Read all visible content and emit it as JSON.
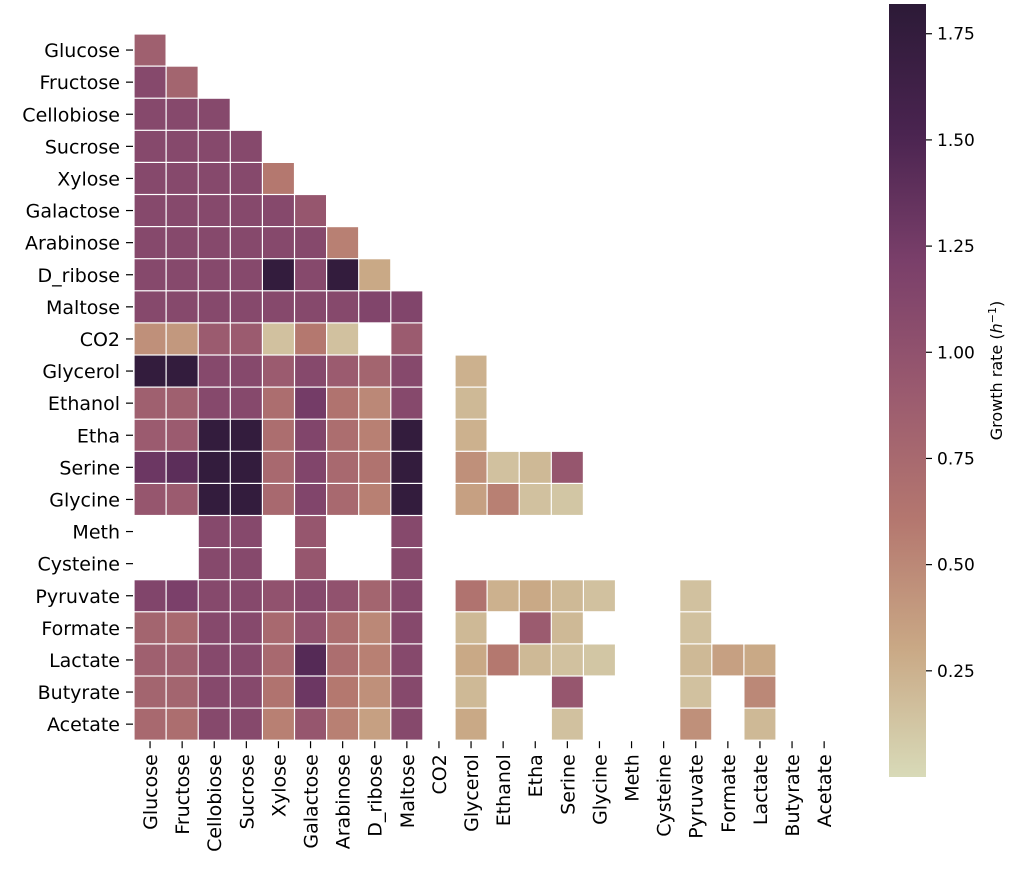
{
  "chart_data": {
    "type": "heatmap",
    "title": "",
    "xlabel": "",
    "ylabel": "",
    "rows": [
      "Glucose",
      "Fructose",
      "Cellobiose",
      "Sucrose",
      "Xylose",
      "Galactose",
      "Arabinose",
      "D_ribose",
      "Maltose",
      "CO2",
      "Glycerol",
      "Ethanol",
      "Etha",
      "Serine",
      "Glycine",
      "Meth",
      "Cysteine",
      "Pyruvate",
      "Formate",
      "Lactate",
      "Butyrate",
      "Acetate"
    ],
    "columns": [
      "Glucose",
      "Fructose",
      "Cellobiose",
      "Sucrose",
      "Xylose",
      "Galactose",
      "Arabinose",
      "D_ribose",
      "Maltose",
      "CO2",
      "Glycerol",
      "Ethanol",
      "Etha",
      "Serine",
      "Glycine",
      "Meth",
      "Cysteine",
      "Pyruvate",
      "Formate",
      "Lactate",
      "Butyrate",
      "Acetate"
    ],
    "values": [
      [
        0.85,
        null,
        null,
        null,
        null,
        null,
        null,
        null,
        null,
        null,
        null,
        null,
        null,
        null,
        null,
        null,
        null,
        null,
        null,
        null,
        null,
        null
      ],
      [
        1.1,
        0.8,
        null,
        null,
        null,
        null,
        null,
        null,
        null,
        null,
        null,
        null,
        null,
        null,
        null,
        null,
        null,
        null,
        null,
        null,
        null,
        null
      ],
      [
        1.1,
        1.1,
        1.1,
        null,
        null,
        null,
        null,
        null,
        null,
        null,
        null,
        null,
        null,
        null,
        null,
        null,
        null,
        null,
        null,
        null,
        null,
        null
      ],
      [
        1.1,
        1.1,
        1.1,
        1.1,
        null,
        null,
        null,
        null,
        null,
        null,
        null,
        null,
        null,
        null,
        null,
        null,
        null,
        null,
        null,
        null,
        null,
        null
      ],
      [
        1.1,
        1.1,
        1.1,
        1.1,
        0.6,
        null,
        null,
        null,
        null,
        null,
        null,
        null,
        null,
        null,
        null,
        null,
        null,
        null,
        null,
        null,
        null,
        null
      ],
      [
        1.1,
        1.1,
        1.1,
        1.1,
        1.1,
        0.95,
        null,
        null,
        null,
        null,
        null,
        null,
        null,
        null,
        null,
        null,
        null,
        null,
        null,
        null,
        null,
        null
      ],
      [
        1.1,
        1.1,
        1.1,
        1.1,
        1.1,
        1.1,
        0.55,
        null,
        null,
        null,
        null,
        null,
        null,
        null,
        null,
        null,
        null,
        null,
        null,
        null,
        null,
        null
      ],
      [
        1.1,
        1.1,
        1.1,
        1.1,
        1.75,
        1.1,
        1.75,
        0.3,
        null,
        null,
        null,
        null,
        null,
        null,
        null,
        null,
        null,
        null,
        null,
        null,
        null,
        null
      ],
      [
        1.1,
        1.1,
        1.1,
        1.1,
        1.1,
        1.1,
        1.1,
        1.15,
        1.15,
        null,
        null,
        null,
        null,
        null,
        null,
        null,
        null,
        null,
        null,
        null,
        null,
        null
      ],
      [
        0.45,
        0.4,
        0.9,
        0.9,
        0.15,
        0.6,
        0.15,
        null,
        0.9,
        null,
        null,
        null,
        null,
        null,
        null,
        null,
        null,
        null,
        null,
        null,
        null,
        null
      ],
      [
        1.75,
        1.75,
        1.1,
        1.1,
        0.9,
        1.1,
        0.9,
        0.8,
        1.1,
        null,
        0.25,
        null,
        null,
        null,
        null,
        null,
        null,
        null,
        null,
        null,
        null,
        null
      ],
      [
        0.85,
        0.85,
        1.1,
        1.1,
        0.7,
        1.25,
        0.65,
        0.5,
        1.1,
        null,
        0.2,
        null,
        null,
        null,
        null,
        null,
        null,
        null,
        null,
        null,
        null,
        null
      ],
      [
        0.9,
        0.9,
        1.75,
        1.75,
        0.7,
        1.15,
        0.7,
        0.55,
        1.75,
        null,
        0.25,
        null,
        null,
        null,
        null,
        null,
        null,
        null,
        null,
        null,
        null,
        null
      ],
      [
        1.3,
        1.4,
        1.75,
        1.75,
        0.75,
        1.15,
        0.75,
        0.65,
        1.75,
        null,
        0.45,
        0.15,
        0.2,
        0.95,
        null,
        null,
        null,
        null,
        null,
        null,
        null,
        null
      ],
      [
        0.95,
        0.9,
        1.75,
        1.75,
        0.75,
        1.15,
        0.75,
        0.55,
        1.75,
        null,
        0.35,
        0.55,
        0.15,
        0.12,
        null,
        null,
        null,
        null,
        null,
        null,
        null,
        null
      ],
      [
        null,
        null,
        1.1,
        1.1,
        null,
        0.95,
        null,
        null,
        1.1,
        null,
        null,
        null,
        null,
        null,
        null,
        null,
        null,
        null,
        null,
        null,
        null,
        null
      ],
      [
        null,
        null,
        1.1,
        1.1,
        null,
        0.95,
        null,
        null,
        1.1,
        null,
        null,
        null,
        null,
        null,
        null,
        null,
        null,
        null,
        null,
        null,
        null,
        null
      ],
      [
        1.15,
        1.2,
        1.1,
        1.1,
        1.0,
        1.1,
        1.0,
        0.8,
        1.1,
        null,
        0.65,
        0.25,
        0.3,
        0.2,
        0.15,
        null,
        null,
        0.15,
        null,
        null,
        null,
        null
      ],
      [
        0.8,
        0.75,
        1.1,
        1.1,
        0.75,
        1.0,
        0.7,
        0.5,
        1.1,
        null,
        0.2,
        null,
        0.9,
        0.2,
        null,
        null,
        null,
        0.15,
        null,
        null,
        null,
        null
      ],
      [
        0.85,
        0.85,
        1.1,
        1.1,
        0.75,
        1.45,
        0.7,
        0.55,
        1.1,
        null,
        0.3,
        0.6,
        0.2,
        0.15,
        0.12,
        null,
        null,
        0.2,
        0.35,
        0.3,
        null,
        null
      ],
      [
        0.8,
        0.8,
        1.1,
        1.1,
        0.65,
        1.3,
        0.6,
        0.45,
        1.1,
        null,
        0.2,
        null,
        null,
        0.95,
        null,
        null,
        null,
        0.15,
        null,
        0.5,
        null,
        null
      ],
      [
        0.75,
        0.7,
        1.1,
        1.1,
        0.55,
        0.95,
        0.55,
        0.35,
        1.1,
        null,
        0.3,
        null,
        null,
        0.15,
        null,
        null,
        null,
        0.45,
        null,
        0.2,
        null,
        null
      ]
    ],
    "colorbar": {
      "label": "Growth rate",
      "units": "h",
      "units_exponent": "−1",
      "range": [
        0.0,
        1.82
      ],
      "ticks": [
        0.25,
        0.5,
        0.75,
        1.0,
        1.25,
        1.5,
        1.75
      ],
      "tick_labels": [
        "0.25",
        "0.50",
        "0.75",
        "1.00",
        "1.25",
        "1.50",
        "1.75"
      ],
      "colors": [
        "#d8dab8",
        "#c9a885",
        "#b4776f",
        "#9a5a6f",
        "#7a3f6a",
        "#4a2450",
        "#2c1a37"
      ]
    }
  }
}
